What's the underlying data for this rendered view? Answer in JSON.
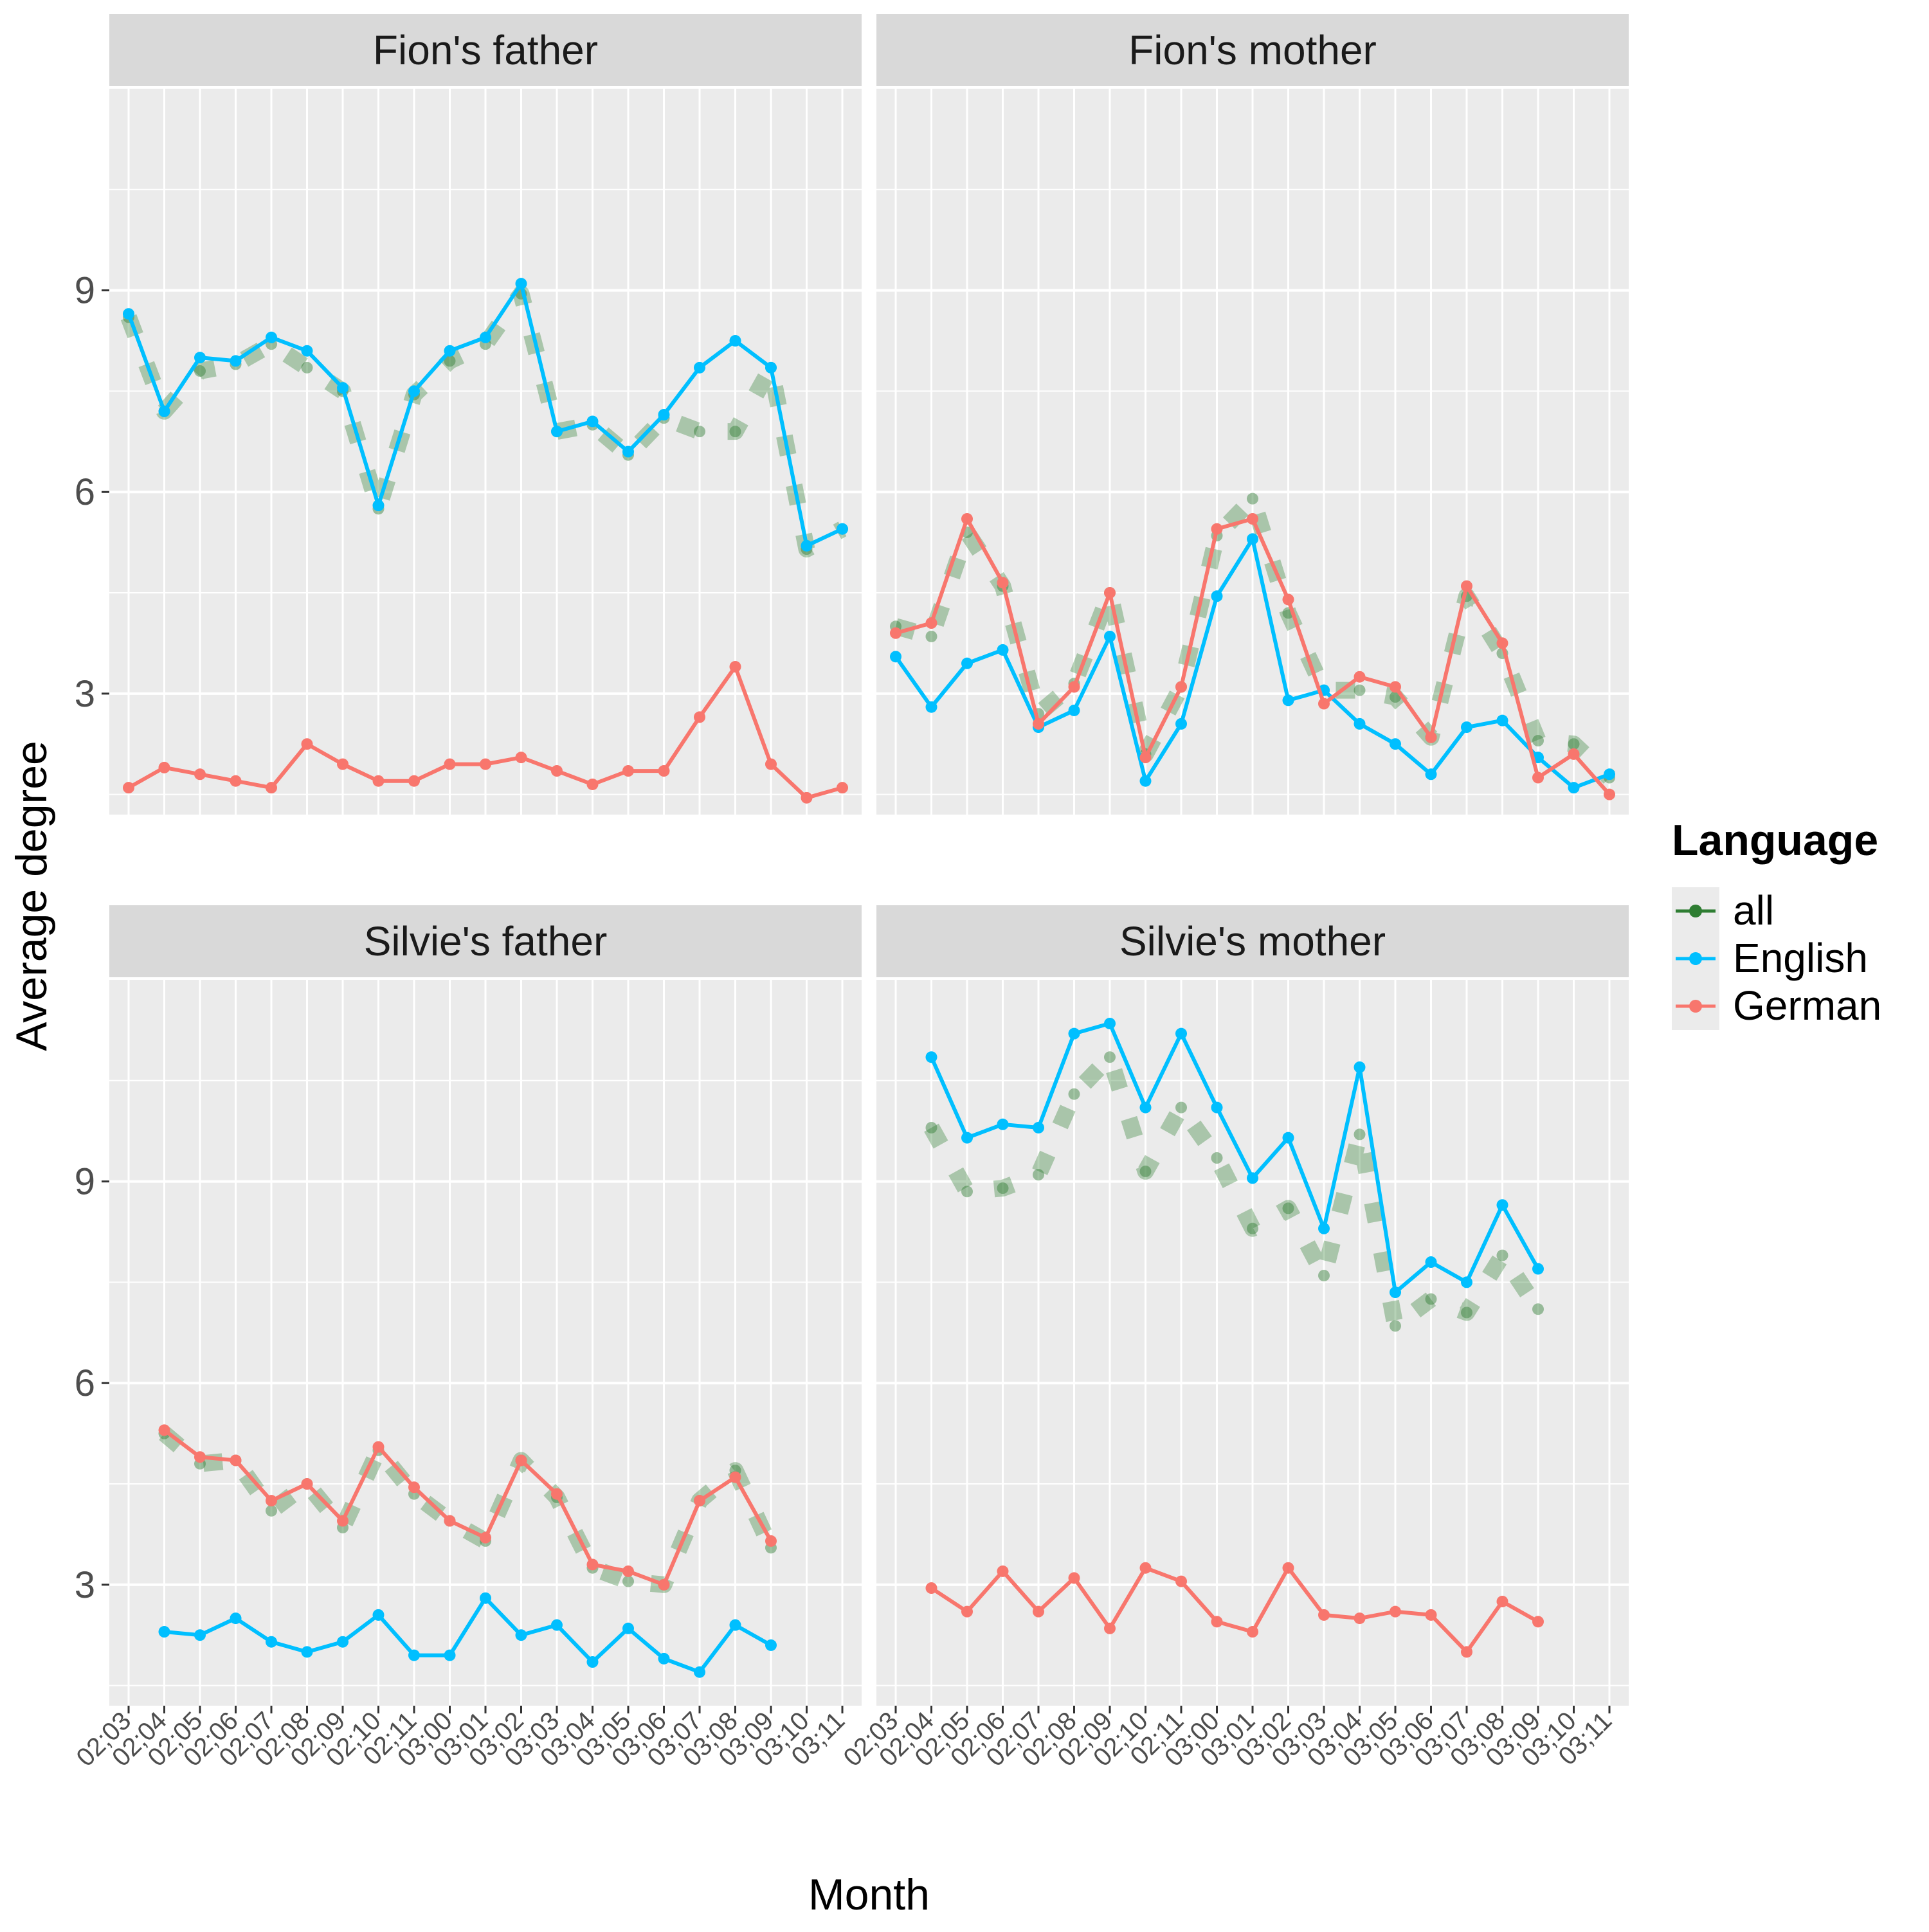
{
  "chart_data": {
    "type": "line",
    "xlabel": "Month",
    "ylabel": "Average degree",
    "x": [
      "02;03",
      "02;04",
      "02;05",
      "02;06",
      "02;07",
      "02;08",
      "02;09",
      "02;10",
      "02;11",
      "03;00",
      "03;01",
      "03;02",
      "03;03",
      "03;04",
      "03;05",
      "03;06",
      "03;07",
      "03;08",
      "03;09",
      "03;10",
      "03;11"
    ],
    "yticks": [
      3,
      6,
      9
    ],
    "ylim": [
      1.2,
      12.0
    ],
    "grid": true,
    "facets": "2x2",
    "legend": {
      "title": "Language",
      "position": "right",
      "entries": [
        {
          "name": "all",
          "color": "#1a6b1a"
        },
        {
          "name": "English",
          "color": "#00BFFF"
        },
        {
          "name": "German",
          "color": "#F8766D"
        }
      ]
    },
    "colors": {
      "all": "#2e7d32",
      "English": "#00BFFF",
      "German": "#F8766D",
      "panel_bg": "#EBEBEB",
      "strip_bg": "#D9D9D9",
      "grid": "#ffffff"
    },
    "panels": [
      {
        "title": "Fion's father",
        "series": [
          {
            "name": "all",
            "values": [
              8.6,
              7.2,
              7.8,
              7.9,
              8.2,
              7.85,
              7.5,
              5.75,
              7.45,
              7.95,
              8.2,
              8.95,
              6.9,
              7.0,
              6.55,
              7.1,
              6.9,
              6.9,
              7.85,
              5.15,
              5.45
            ]
          },
          {
            "name": "English",
            "values": [
              8.65,
              7.2,
              8.0,
              7.95,
              8.3,
              8.1,
              7.55,
              5.8,
              7.5,
              8.1,
              8.3,
              9.1,
              6.9,
              7.05,
              6.6,
              7.15,
              7.85,
              8.25,
              7.85,
              5.2,
              5.45
            ]
          },
          {
            "name": "German",
            "values": [
              1.6,
              1.9,
              1.8,
              1.7,
              1.6,
              2.25,
              1.95,
              1.7,
              1.7,
              1.95,
              1.95,
              2.05,
              1.85,
              1.65,
              1.85,
              1.85,
              2.65,
              3.4,
              1.95,
              1.45,
              1.6
            ]
          }
        ]
      },
      {
        "title": "Fion's mother",
        "series": [
          {
            "name": "all",
            "values": [
              4.0,
              3.85,
              5.4,
              4.6,
              2.7,
              3.15,
              4.5,
              2.1,
              3.1,
              5.35,
              5.9,
              4.2,
              3.05,
              3.05,
              2.95,
              2.35,
              4.45,
              3.6,
              2.3,
              2.25,
              1.75
            ]
          },
          {
            "name": "English",
            "values": [
              3.55,
              2.8,
              3.45,
              3.65,
              2.5,
              2.75,
              3.85,
              1.7,
              2.55,
              4.45,
              5.3,
              2.9,
              3.05,
              2.55,
              2.25,
              1.8,
              2.5,
              2.6,
              2.05,
              1.6,
              1.8
            ]
          },
          {
            "name": "German",
            "values": [
              3.9,
              4.05,
              5.6,
              4.65,
              2.55,
              3.1,
              4.5,
              2.05,
              3.1,
              5.45,
              5.6,
              4.4,
              2.85,
              3.25,
              3.1,
              2.35,
              4.6,
              3.75,
              1.75,
              2.1,
              1.5
            ]
          }
        ]
      },
      {
        "title": "Silvie's father",
        "series": [
          {
            "name": "all",
            "values": [
              null,
              5.25,
              4.8,
              4.85,
              4.1,
              4.5,
              3.85,
              5.0,
              4.35,
              3.95,
              3.65,
              4.85,
              4.3,
              3.25,
              3.05,
              3.0,
              4.25,
              4.7,
              3.55,
              null,
              null
            ]
          },
          {
            "name": "English",
            "values": [
              null,
              2.3,
              2.25,
              2.5,
              2.15,
              2.0,
              2.15,
              2.55,
              1.95,
              1.95,
              2.8,
              2.25,
              2.4,
              1.85,
              2.35,
              1.9,
              1.7,
              2.4,
              2.1,
              null,
              null
            ]
          },
          {
            "name": "German",
            "values": [
              null,
              5.3,
              4.9,
              4.85,
              4.25,
              4.5,
              3.95,
              5.05,
              4.45,
              3.95,
              3.7,
              4.85,
              4.35,
              3.3,
              3.2,
              3.0,
              4.25,
              4.6,
              3.65,
              null,
              null
            ]
          }
        ]
      },
      {
        "title": "Silvie's mother",
        "series": [
          {
            "name": "all",
            "values": [
              null,
              9.8,
              8.85,
              8.9,
              9.1,
              10.3,
              10.85,
              9.15,
              10.1,
              9.35,
              8.3,
              8.6,
              7.6,
              9.7,
              6.85,
              7.25,
              7.05,
              7.9,
              7.1,
              null,
              null
            ]
          },
          {
            "name": "English",
            "values": [
              null,
              10.85,
              9.65,
              9.85,
              9.8,
              11.2,
              11.35,
              10.1,
              11.2,
              10.1,
              9.05,
              9.65,
              8.3,
              10.7,
              7.35,
              7.8,
              7.5,
              8.65,
              7.7,
              null,
              null
            ]
          },
          {
            "name": "German",
            "values": [
              null,
              2.95,
              2.6,
              3.2,
              2.6,
              3.1,
              2.35,
              3.25,
              3.05,
              2.45,
              2.3,
              3.25,
              2.55,
              2.5,
              2.6,
              2.55,
              2.0,
              2.75,
              2.45,
              null,
              null
            ]
          }
        ]
      }
    ]
  }
}
